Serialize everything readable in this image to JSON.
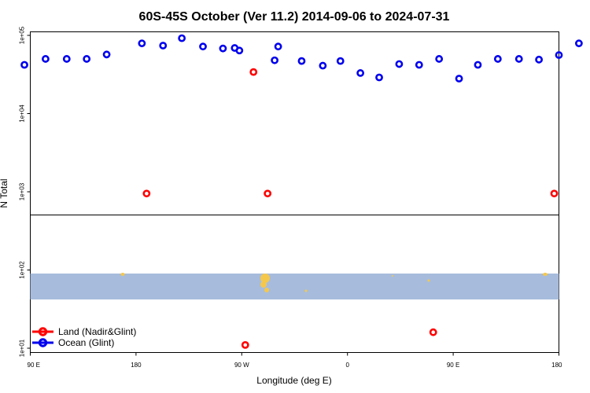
{
  "chart_data": {
    "type": "scatter",
    "title": "60S-45S October (Ver 11.2)   2014-09-06 to 2024-07-31",
    "xlabel": "Longitude (deg E)",
    "ylabel": "N Total",
    "y_scale": "log",
    "ylim": [
      10,
      100000
    ],
    "x_ticks": [
      "90 E",
      "180",
      "90 W",
      "0",
      "90 E",
      "180"
    ],
    "y_ticks": [
      "1e+05",
      "1e+04",
      "1e+03",
      "1e+02",
      "1e+01"
    ],
    "legend_position": "bottom-left",
    "series": [
      {
        "name": "Land (Nadir&Glint)",
        "color": "#ff0000",
        "points": [
          [
            -171,
            950
          ],
          [
            -80,
            34000
          ],
          [
            -68,
            950
          ],
          [
            -87,
            11
          ],
          [
            73,
            16
          ],
          [
            176,
            950
          ]
        ]
      },
      {
        "name": "Ocean (Glint)",
        "color": "#0000ee",
        "points": [
          [
            -275,
            42000
          ],
          [
            -257,
            50000
          ],
          [
            -239,
            50000
          ],
          [
            -222,
            50000
          ],
          [
            -205,
            57000
          ],
          [
            -175,
            79000
          ],
          [
            -157,
            74000
          ],
          [
            -141,
            92000
          ],
          [
            -123,
            72000
          ],
          [
            -106,
            68000
          ],
          [
            -92,
            64000
          ],
          [
            -62,
            48000
          ],
          [
            -96,
            69000
          ],
          [
            -59,
            72000
          ],
          [
            -39,
            47000
          ],
          [
            -21,
            41000
          ],
          [
            -6,
            47000
          ],
          [
            11,
            33000
          ],
          [
            27,
            29000
          ],
          [
            44,
            43000
          ],
          [
            61,
            42000
          ],
          [
            78,
            50000
          ],
          [
            95,
            28000
          ],
          [
            111,
            42000
          ],
          [
            128,
            50000
          ],
          [
            146,
            50000
          ],
          [
            163,
            49000
          ],
          [
            180,
            56000
          ],
          [
            197,
            79000
          ]
        ]
      }
    ],
    "map_band": {
      "ocean_color": "#a7bcdc",
      "land_color": "#f5c84c",
      "range_y": [
        18,
        88
      ]
    }
  },
  "legend": {
    "land_label": "Land (Nadir&Glint)",
    "ocean_label": "Ocean (Glint)"
  }
}
